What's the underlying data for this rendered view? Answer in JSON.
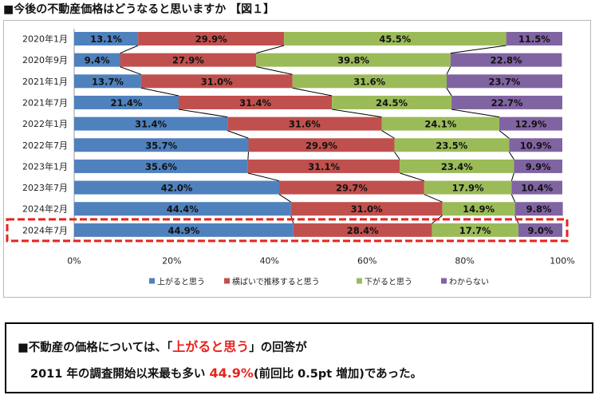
{
  "title": "■今後の不動産価格はどうなると思いますか 【図１】",
  "chart_data": {
    "type": "bar",
    "orientation": "horizontal",
    "stacked": "percent",
    "categories": [
      "2020年1月",
      "2020年9月",
      "2021年1月",
      "2021年7月",
      "2022年1月",
      "2022年7月",
      "2023年1月",
      "2023年7月",
      "2024年2月",
      "2024年7月"
    ],
    "series": [
      {
        "name": "上がると思う",
        "color": "#4f81bd",
        "values": [
          13.1,
          9.4,
          13.7,
          21.4,
          31.4,
          35.7,
          35.6,
          42.0,
          44.4,
          44.9
        ]
      },
      {
        "name": "横ばいで推移すると思う",
        "color": "#c0504d",
        "values": [
          29.9,
          27.9,
          31.0,
          31.4,
          31.6,
          29.9,
          31.1,
          29.7,
          31.0,
          28.4
        ]
      },
      {
        "name": "下がると思う",
        "color": "#9bbb59",
        "values": [
          45.5,
          39.8,
          31.6,
          24.5,
          24.1,
          23.5,
          23.4,
          17.9,
          14.9,
          17.7
        ]
      },
      {
        "name": "わからない",
        "color": "#8064a2",
        "values": [
          11.5,
          22.8,
          23.7,
          22.7,
          12.9,
          10.9,
          9.9,
          10.4,
          9.8,
          9.0
        ]
      }
    ],
    "xaxis": {
      "range": [
        0,
        100
      ],
      "ticks": [
        "0%",
        "20%",
        "40%",
        "60%",
        "80%",
        "100%"
      ]
    },
    "value_suffix": "%",
    "legend_position": "bottom",
    "highlight_category": "2024年7月",
    "highlight_color": "#e8231d"
  },
  "callout": {
    "line1_prefix": "■不動産の価格については、「",
    "line1_highlight": "上がると思う",
    "line1_suffix": "」の回答が",
    "line2_prefix": "2011 年の調査開始以来最も多い ",
    "line2_highlight": "44.9%",
    "line2_suffix": "(前回比 0.5pt 増加)であった。"
  }
}
